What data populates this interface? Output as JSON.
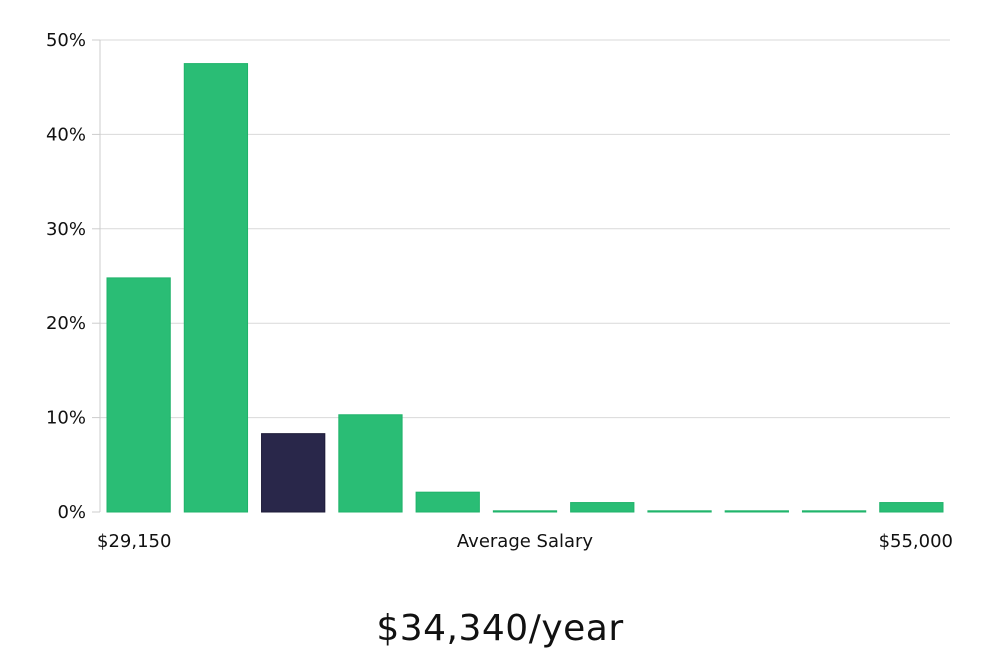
{
  "chart_data": {
    "type": "bar",
    "title": "",
    "xlabel": "Average Salary",
    "ylabel": "",
    "x_start_label": "$29,150",
    "x_end_label": "$55,000",
    "ylim": [
      0,
      50
    ],
    "yticks": [
      0,
      10,
      20,
      30,
      40,
      50
    ],
    "ytick_labels": [
      "0%",
      "10%",
      "20%",
      "30%",
      "40%",
      "50%"
    ],
    "values": [
      24.8,
      47.5,
      8.3,
      10.3,
      2.1,
      0.1,
      1.0,
      0.1,
      0.1,
      0.1,
      1.0
    ],
    "highlight_index": 2,
    "bar_color": "#2abd75",
    "highlight_color": "#29274a",
    "grid": true
  },
  "summary": {
    "salary": "$34,340/year"
  }
}
